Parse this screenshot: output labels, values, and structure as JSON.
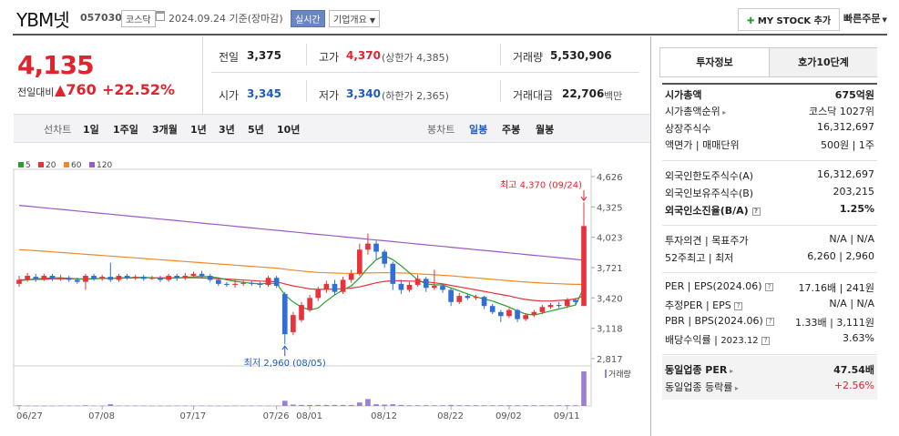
{
  "header": {
    "name": "YBM넷",
    "code": "057030",
    "market": "코스닥",
    "date": "2024.09.24 기준(장마감)",
    "realtime": "실시간",
    "company_info": "기업개요",
    "my_stock": "MY STOCK 추가",
    "quick_order": "빠른주문"
  },
  "price": {
    "current": "4,135",
    "change_label": "전일대비",
    "change": "760",
    "change_pct": "+22.52%"
  },
  "quote": {
    "prev_label": "전일",
    "prev": "3,375",
    "high_label": "고가",
    "high": "4,370",
    "high_limit": "(상한가 4,385)",
    "volume_label": "거래량",
    "volume": "5,530,906",
    "open_label": "시가",
    "open": "3,345",
    "low_label": "저가",
    "low": "3,340",
    "low_limit": "(하한가 2,365)",
    "amount_label": "거래대금",
    "amount": "22,706",
    "amount_unit": "백만"
  },
  "toolbar": {
    "line_label": "선차트",
    "periods": [
      "1일",
      "1주일",
      "3개월",
      "1년",
      "3년",
      "5년",
      "10년"
    ],
    "candle_label": "봉차트",
    "candle_periods": [
      "일봉",
      "주봉",
      "월봉"
    ]
  },
  "tabs": {
    "invest": "투자정보",
    "hoga": "호가10단계"
  },
  "info": {
    "mcap_k": "시가총액",
    "mcap_v": "675억원",
    "rank_k": "시가총액순위",
    "rank_v": "코스닥 1027위",
    "shares_k": "상장주식수",
    "shares_v": "16,312,697",
    "par_k": "액면가",
    "trade_unit_k": "매매단위",
    "par_v": "500원",
    "trade_unit_v": "1주",
    "foreign_limit_k": "외국인한도주식수(A)",
    "foreign_limit_v": "16,312,697",
    "foreign_hold_k": "외국인보유주식수(B)",
    "foreign_hold_v": "203,215",
    "foreign_rate_k": "외국인소진율(B/A)",
    "foreign_rate_v": "1.25%",
    "opinion_k": "투자의견",
    "target_k": "목표주가",
    "opinion_v": "N/A",
    "target_v": "N/A",
    "w52_k": "52주최고",
    "w52_low_k": "최저",
    "w52_high_v": "6,260",
    "w52_low_v": "2,960",
    "per_k": "PER",
    "eps_k": "EPS(2024.06)",
    "per_v": "17.16배",
    "eps_v": "241원",
    "eper_k": "추정PER",
    "eeps_k": "EPS",
    "eper_v": "N/A",
    "eeps_v": "N/A",
    "pbr_k": "PBR",
    "bps_k": "BPS(2024.06)",
    "pbr_v": "1.33배",
    "bps_v": "3,111원",
    "div_k": "배당수익률",
    "div_date": "2023.12",
    "div_v": "3.63%",
    "ind_per_k": "동일업종 PER",
    "ind_per_v": "47.54배",
    "ind_rate_k": "동일업종 등락률",
    "ind_rate_v": "+2.56%"
  },
  "chart_data": {
    "type": "candlestick",
    "legend": [
      {
        "name": "5",
        "color": "#2ca02c"
      },
      {
        "name": "20",
        "color": "#e8323c"
      },
      {
        "name": "60",
        "color": "#f0892a"
      },
      {
        "name": "120",
        "color": "#9b59c6"
      }
    ],
    "y_ticks": [
      "4,626",
      "4,325",
      "4,023",
      "3,721",
      "3,420",
      "3,118",
      "2,817"
    ],
    "ylim": [
      2817,
      4626
    ],
    "x_ticks": [
      "06/27",
      "07/08",
      "07/17",
      "07/26",
      "08/01",
      "08/12",
      "08/22",
      "09/02",
      "09/11"
    ],
    "high_label": "최고 4,370 (09/24)",
    "low_label": "최저 2,960 (08/05)",
    "volume_label": "거래량",
    "candles": [
      {
        "o": 3560,
        "c": 3600,
        "h": 3640,
        "l": 3530
      },
      {
        "o": 3600,
        "c": 3640,
        "h": 3670,
        "l": 3580
      },
      {
        "o": 3630,
        "c": 3610,
        "h": 3660,
        "l": 3580
      },
      {
        "o": 3610,
        "c": 3640,
        "h": 3660,
        "l": 3590
      },
      {
        "o": 3640,
        "c": 3610,
        "h": 3660,
        "l": 3590
      },
      {
        "o": 3610,
        "c": 3620,
        "h": 3650,
        "l": 3590
      },
      {
        "o": 3620,
        "c": 3600,
        "h": 3640,
        "l": 3580
      },
      {
        "o": 3600,
        "c": 3580,
        "h": 3620,
        "l": 3560
      },
      {
        "o": 3580,
        "c": 3640,
        "h": 3660,
        "l": 3500
      },
      {
        "o": 3640,
        "c": 3610,
        "h": 3660,
        "l": 3590
      },
      {
        "o": 3610,
        "c": 3630,
        "h": 3650,
        "l": 3590
      },
      {
        "o": 3630,
        "c": 3600,
        "h": 3770,
        "l": 3580
      },
      {
        "o": 3600,
        "c": 3640,
        "h": 3660,
        "l": 3580
      },
      {
        "o": 3640,
        "c": 3620,
        "h": 3660,
        "l": 3600
      },
      {
        "o": 3620,
        "c": 3630,
        "h": 3650,
        "l": 3600
      },
      {
        "o": 3630,
        "c": 3610,
        "h": 3650,
        "l": 3590
      },
      {
        "o": 3610,
        "c": 3620,
        "h": 3640,
        "l": 3600
      },
      {
        "o": 3620,
        "c": 3600,
        "h": 3640,
        "l": 3580
      },
      {
        "o": 3600,
        "c": 3640,
        "h": 3660,
        "l": 3580
      },
      {
        "o": 3640,
        "c": 3620,
        "h": 3660,
        "l": 3590
      },
      {
        "o": 3620,
        "c": 3640,
        "h": 3670,
        "l": 3600
      },
      {
        "o": 3640,
        "c": 3660,
        "h": 3680,
        "l": 3620
      },
      {
        "o": 3660,
        "c": 3640,
        "h": 3690,
        "l": 3620
      },
      {
        "o": 3640,
        "c": 3600,
        "h": 3660,
        "l": 3580
      },
      {
        "o": 3600,
        "c": 3560,
        "h": 3620,
        "l": 3540
      },
      {
        "o": 3560,
        "c": 3550,
        "h": 3580,
        "l": 3530
      },
      {
        "o": 3550,
        "c": 3560,
        "h": 3600,
        "l": 3520
      },
      {
        "o": 3560,
        "c": 3570,
        "h": 3590,
        "l": 3540
      },
      {
        "o": 3570,
        "c": 3560,
        "h": 3590,
        "l": 3540
      },
      {
        "o": 3560,
        "c": 3550,
        "h": 3580,
        "l": 3520
      },
      {
        "o": 3550,
        "c": 3620,
        "h": 3640,
        "l": 3530
      },
      {
        "o": 3620,
        "c": 3540,
        "h": 3640,
        "l": 3520
      },
      {
        "o": 3460,
        "c": 3060,
        "h": 3480,
        "l": 2960
      },
      {
        "o": 3080,
        "c": 3250,
        "h": 3280,
        "l": 3050
      },
      {
        "o": 3200,
        "c": 3350,
        "h": 3380,
        "l": 3180
      },
      {
        "o": 3300,
        "c": 3420,
        "h": 3450,
        "l": 3280
      },
      {
        "o": 3420,
        "c": 3500,
        "h": 3530,
        "l": 3390
      },
      {
        "o": 3500,
        "c": 3560,
        "h": 3590,
        "l": 3470
      },
      {
        "o": 3560,
        "c": 3480,
        "h": 3600,
        "l": 3450
      },
      {
        "o": 3480,
        "c": 3600,
        "h": 3630,
        "l": 3460
      },
      {
        "o": 3600,
        "c": 3660,
        "h": 3700,
        "l": 3570
      },
      {
        "o": 3660,
        "c": 3900,
        "h": 3960,
        "l": 3640
      },
      {
        "o": 3900,
        "c": 3960,
        "h": 4060,
        "l": 3850
      },
      {
        "o": 3960,
        "c": 3880,
        "h": 3990,
        "l": 3800
      },
      {
        "o": 3880,
        "c": 3760,
        "h": 3900,
        "l": 3720
      },
      {
        "o": 3760,
        "c": 3560,
        "h": 3780,
        "l": 3500
      },
      {
        "o": 3560,
        "c": 3500,
        "h": 3600,
        "l": 3460
      },
      {
        "o": 3500,
        "c": 3550,
        "h": 3580,
        "l": 3480
      },
      {
        "o": 3550,
        "c": 3610,
        "h": 3650,
        "l": 3530
      },
      {
        "o": 3610,
        "c": 3520,
        "h": 3630,
        "l": 3480
      },
      {
        "o": 3520,
        "c": 3540,
        "h": 3700,
        "l": 3500
      },
      {
        "o": 3540,
        "c": 3500,
        "h": 3560,
        "l": 3470
      },
      {
        "o": 3500,
        "c": 3380,
        "h": 3520,
        "l": 3340
      },
      {
        "o": 3380,
        "c": 3440,
        "h": 3470,
        "l": 3360
      },
      {
        "o": 3440,
        "c": 3420,
        "h": 3460,
        "l": 3400
      },
      {
        "o": 3420,
        "c": 3430,
        "h": 3450,
        "l": 3400
      },
      {
        "o": 3430,
        "c": 3340,
        "h": 3440,
        "l": 3310
      },
      {
        "o": 3340,
        "c": 3280,
        "h": 3360,
        "l": 3260
      },
      {
        "o": 3280,
        "c": 3240,
        "h": 3300,
        "l": 3180
      },
      {
        "o": 3240,
        "c": 3300,
        "h": 3320,
        "l": 3220
      },
      {
        "o": 3300,
        "c": 3210,
        "h": 3310,
        "l": 3180
      },
      {
        "o": 3210,
        "c": 3250,
        "h": 3270,
        "l": 3190
      },
      {
        "o": 3250,
        "c": 3280,
        "h": 3300,
        "l": 3230
      },
      {
        "o": 3280,
        "c": 3330,
        "h": 3350,
        "l": 3260
      },
      {
        "o": 3330,
        "c": 3350,
        "h": 3370,
        "l": 3310
      },
      {
        "o": 3350,
        "c": 3340,
        "h": 3380,
        "l": 3320
      },
      {
        "o": 3340,
        "c": 3400,
        "h": 3420,
        "l": 3320
      },
      {
        "o": 3400,
        "c": 3380,
        "h": 3420,
        "l": 3350
      },
      {
        "o": 3340,
        "c": 4135,
        "h": 4370,
        "l": 3340
      }
    ],
    "ma5": [
      3590,
      3600,
      3610,
      3615,
      3620,
      3620,
      3615,
      3610,
      3605,
      3610,
      3615,
      3615,
      3620,
      3620,
      3625,
      3625,
      3620,
      3615,
      3615,
      3620,
      3625,
      3630,
      3635,
      3630,
      3620,
      3600,
      3585,
      3575,
      3565,
      3560,
      3565,
      3565,
      3450,
      3380,
      3330,
      3300,
      3320,
      3390,
      3450,
      3500,
      3540,
      3620,
      3720,
      3800,
      3840,
      3800,
      3740,
      3670,
      3600,
      3560,
      3550,
      3550,
      3520,
      3490,
      3460,
      3430,
      3410,
      3390,
      3360,
      3330,
      3290,
      3260,
      3250,
      3270,
      3290,
      3310,
      3330,
      3350,
      3520
    ],
    "ma20": [
      3600,
      3600,
      3605,
      3605,
      3610,
      3610,
      3610,
      3610,
      3610,
      3612,
      3614,
      3615,
      3617,
      3618,
      3619,
      3620,
      3620,
      3620,
      3620,
      3620,
      3620,
      3620,
      3618,
      3615,
      3612,
      3608,
      3603,
      3598,
      3593,
      3588,
      3585,
      3580,
      3560,
      3540,
      3525,
      3510,
      3505,
      3505,
      3508,
      3512,
      3518,
      3530,
      3550,
      3570,
      3585,
      3590,
      3590,
      3588,
      3585,
      3580,
      3570,
      3560,
      3545,
      3530,
      3515,
      3500,
      3485,
      3470,
      3455,
      3440,
      3420,
      3405,
      3395,
      3390,
      3390,
      3395,
      3400,
      3410,
      3440
    ],
    "ma60": [
      3900,
      3895,
      3890,
      3884,
      3878,
      3872,
      3866,
      3860,
      3854,
      3848,
      3842,
      3836,
      3830,
      3824,
      3818,
      3812,
      3806,
      3800,
      3794,
      3788,
      3782,
      3776,
      3770,
      3764,
      3758,
      3752,
      3746,
      3740,
      3734,
      3728,
      3722,
      3716,
      3706,
      3696,
      3688,
      3680,
      3674,
      3670,
      3667,
      3665,
      3664,
      3665,
      3668,
      3670,
      3671,
      3670,
      3668,
      3665,
      3660,
      3655,
      3650,
      3645,
      3640,
      3633,
      3626,
      3619,
      3612,
      3605,
      3598,
      3591,
      3584,
      3578,
      3573,
      3568,
      3564,
      3561,
      3558,
      3555,
      3555
    ],
    "ma120": [
      4340,
      4332,
      4324,
      4316,
      4308,
      4300,
      4292,
      4284,
      4276,
      4268,
      4260,
      4252,
      4244,
      4236,
      4228,
      4220,
      4212,
      4204,
      4196,
      4188,
      4180,
      4172,
      4164,
      4156,
      4148,
      4140,
      4132,
      4124,
      4116,
      4108,
      4100,
      4092,
      4084,
      4076,
      4068,
      4060,
      4052,
      4044,
      4036,
      4028,
      4020,
      4012,
      4004,
      3996,
      3988,
      3980,
      3972,
      3964,
      3956,
      3948,
      3940,
      3932,
      3924,
      3916,
      3908,
      3900,
      3892,
      3884,
      3876,
      3868,
      3860,
      3852,
      3844,
      3836,
      3828,
      3820,
      3812,
      3804,
      3796
    ],
    "volume": [
      2,
      1,
      1,
      1,
      1,
      1,
      1,
      1,
      2,
      1,
      1,
      5,
      1,
      1,
      1,
      1,
      1,
      1,
      1,
      1,
      1,
      1,
      1,
      1,
      1,
      1,
      1,
      1,
      1,
      1,
      1,
      1,
      15,
      4,
      3,
      3,
      3,
      3,
      3,
      3,
      3,
      10,
      20,
      5,
      4,
      5,
      3,
      2,
      2,
      2,
      2,
      2,
      3,
      2,
      2,
      2,
      2,
      2,
      2,
      2,
      2,
      2,
      2,
      2,
      2,
      2,
      2,
      2,
      100
    ]
  }
}
